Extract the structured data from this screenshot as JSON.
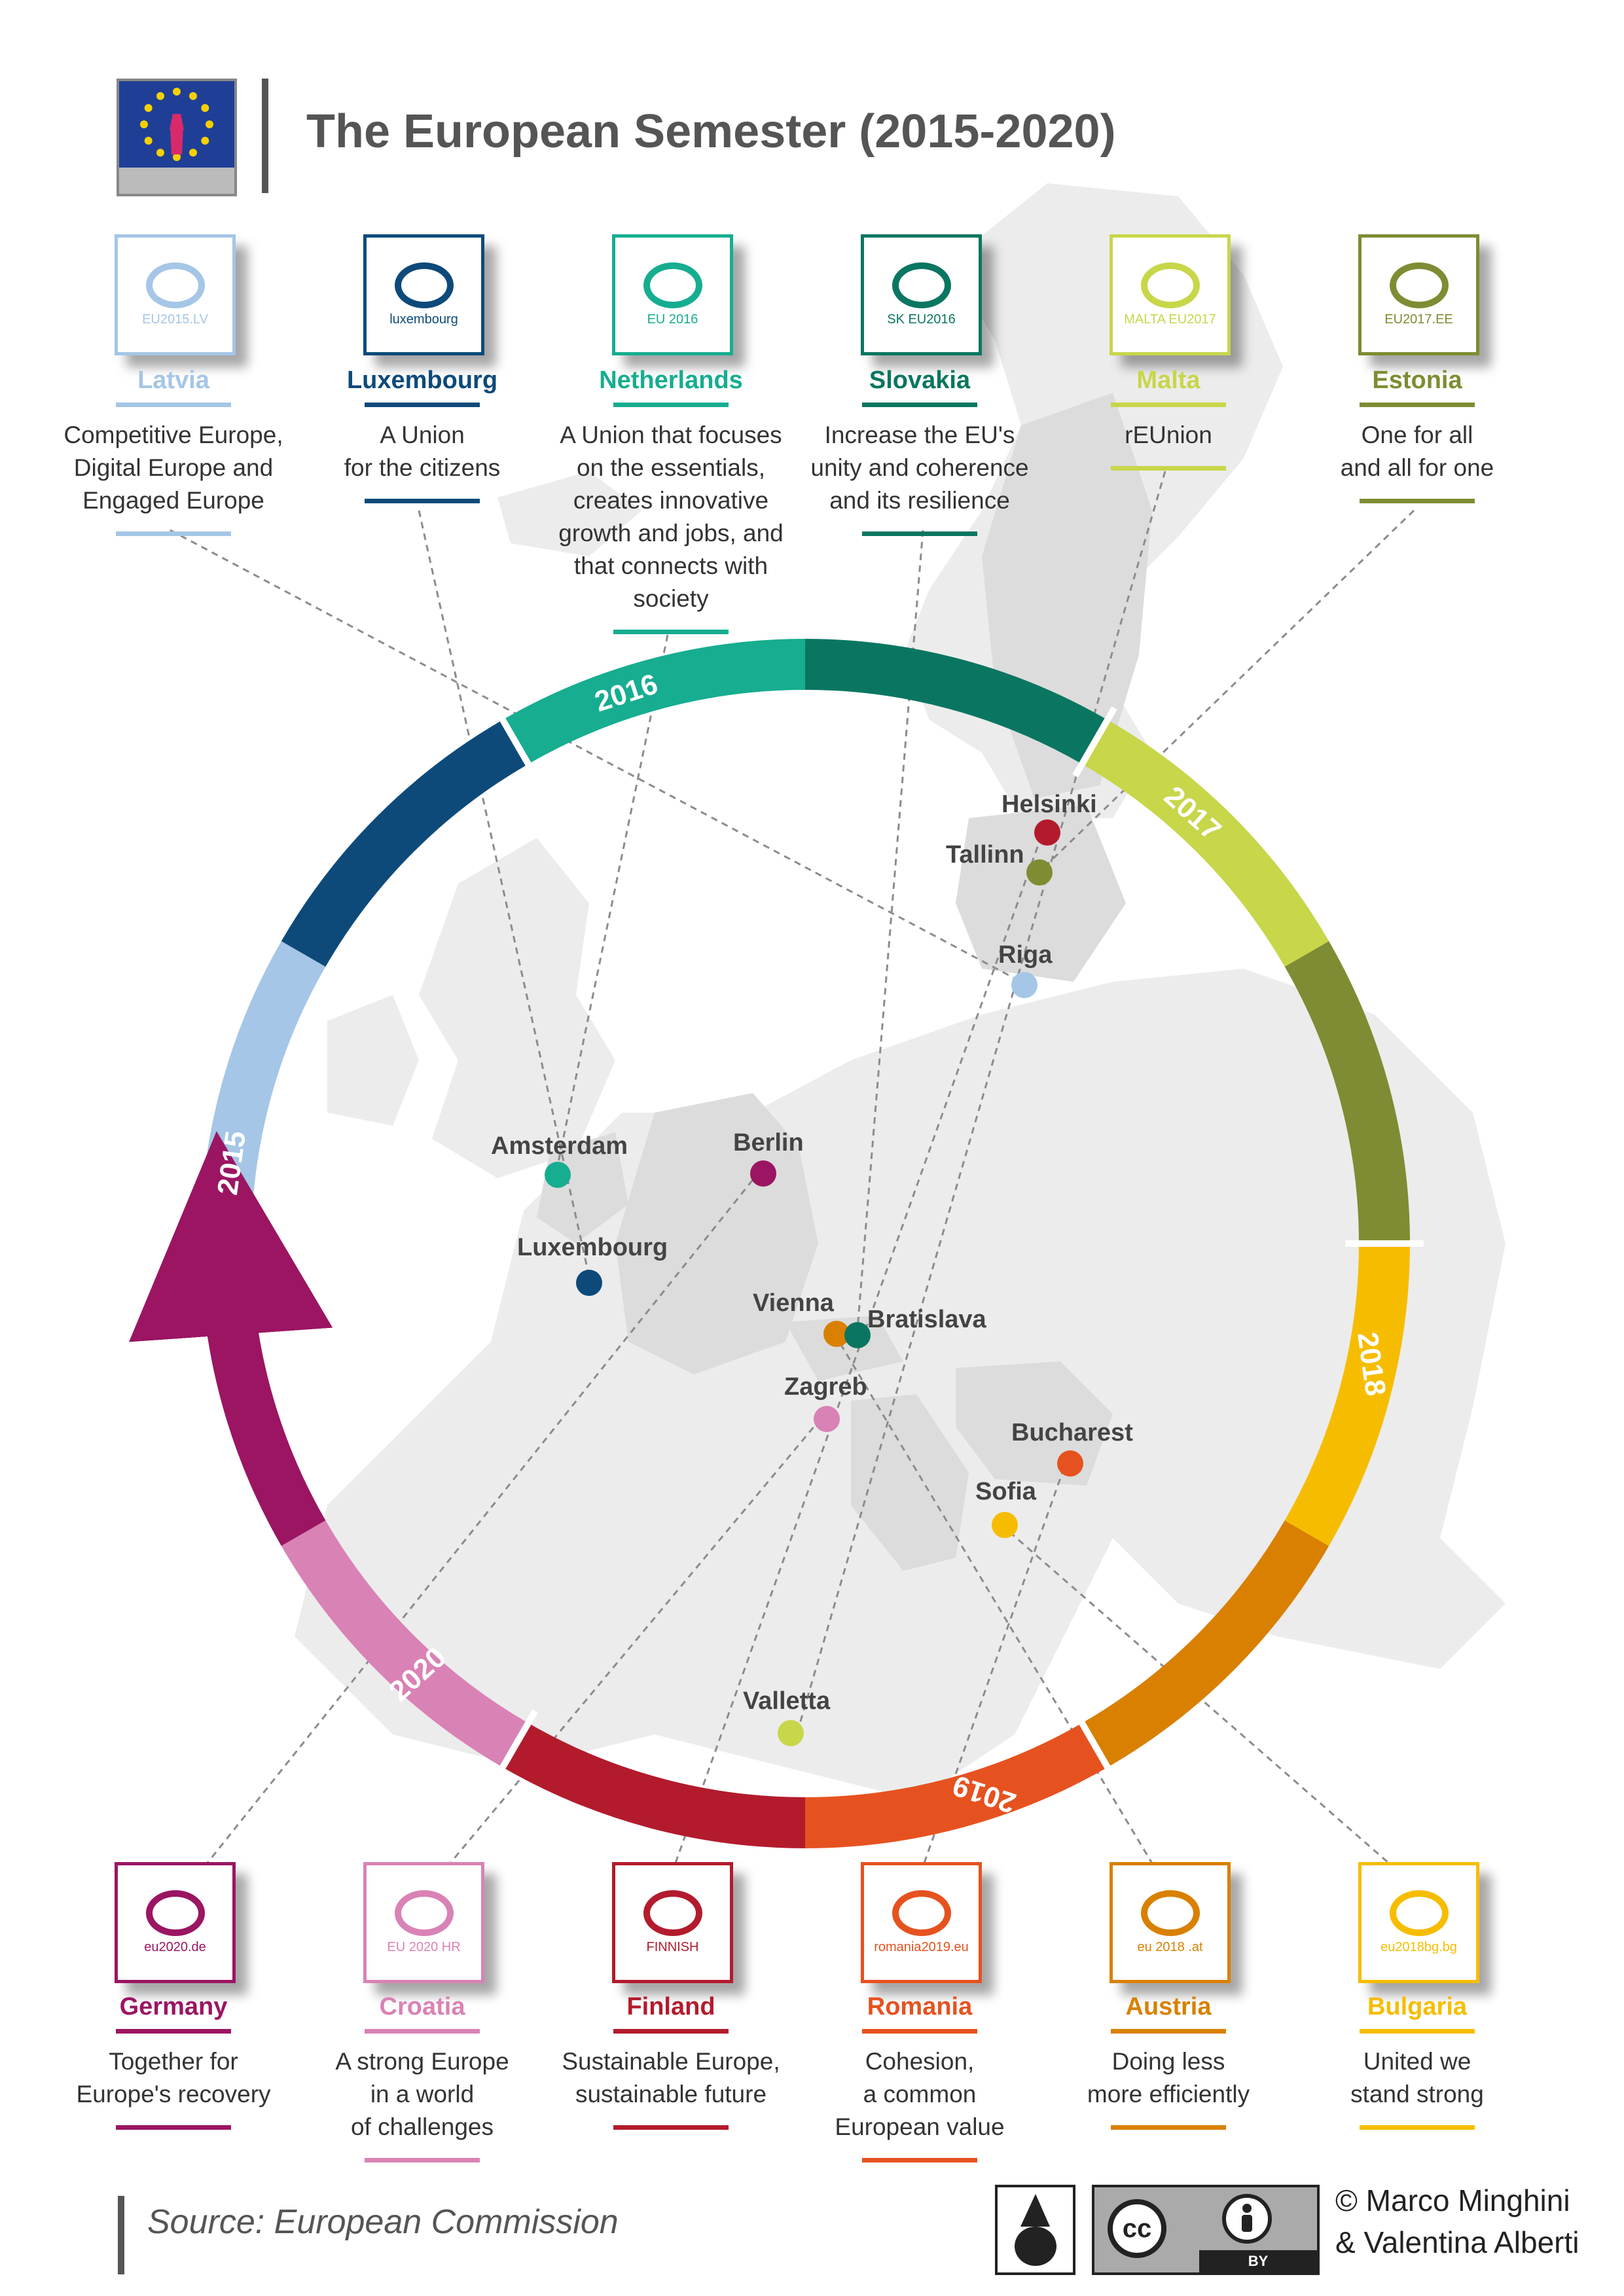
{
  "title": "The European Semester (2015-2020)",
  "source": "Source: European Commission",
  "credit": {
    "line1": "© Marco Minghini",
    "line2": "& Valentina Alberti"
  },
  "cc_badge": {
    "cc": "cc",
    "by": "BY"
  },
  "year_labels": [
    "2015",
    "2016",
    "2017",
    "2018",
    "2019",
    "2020"
  ],
  "top_presidencies": [
    {
      "country": "Latvia",
      "motto": [
        "Competitive Europe,",
        "Digital Europe and",
        "Engaged Europe"
      ],
      "logo_text": "EU2015.LV",
      "color": "#a5c6e6"
    },
    {
      "country": "Luxembourg",
      "motto": [
        "A Union",
        "for the citizens"
      ],
      "logo_text": "luxembourg",
      "color": "#0d4a7a"
    },
    {
      "country": "Netherlands",
      "motto": [
        "A Union that focuses",
        "on the essentials,",
        "creates innovative",
        "growth and jobs, and",
        "that connects with",
        "society"
      ],
      "logo_text": "EU 2016",
      "color": "#16ad90"
    },
    {
      "country": "Slovakia",
      "motto": [
        "Increase the EU's",
        "unity and coherence",
        "and its resilience"
      ],
      "logo_text": "SK EU2016",
      "color": "#0a7661"
    },
    {
      "country": "Malta",
      "motto": [
        "rEUnion"
      ],
      "logo_text": "MALTA EU2017",
      "color": "#c8d64a"
    },
    {
      "country": "Estonia",
      "motto": [
        "One for all",
        "and all for one"
      ],
      "logo_text": "EU2017.EE",
      "color": "#7f8c33"
    }
  ],
  "bottom_presidencies": [
    {
      "country": "Germany",
      "motto": [
        "Together for",
        "Europe's recovery"
      ],
      "logo_text": "eu2020.de",
      "color": "#9b1562"
    },
    {
      "country": "Croatia",
      "motto": [
        "A strong Europe",
        "in a world",
        "of challenges"
      ],
      "logo_text": "EU 2020 HR",
      "color": "#d982b5"
    },
    {
      "country": "Finland",
      "motto": [
        "Sustainable Europe,",
        "sustainable future"
      ],
      "logo_text": "FINNISH",
      "color": "#b31b2d"
    },
    {
      "country": "Romania",
      "motto": [
        "Cohesion,",
        "a common",
        "European value"
      ],
      "logo_text": "romania2019.eu",
      "color": "#e6521f"
    },
    {
      "country": "Austria",
      "motto": [
        "Doing less",
        "more efficiently"
      ],
      "logo_text": "eu 2018 .at",
      "color": "#d98000"
    },
    {
      "country": "Bulgaria",
      "motto": [
        "United we",
        "stand strong"
      ],
      "logo_text": "eu2018bg.bg",
      "color": "#f6bd00"
    }
  ],
  "cities": [
    {
      "name": "Helsinki",
      "color": "#b31b2d"
    },
    {
      "name": "Tallinn",
      "color": "#7f8c33"
    },
    {
      "name": "Riga",
      "color": "#a5c6e6"
    },
    {
      "name": "Amsterdam",
      "color": "#16ad90"
    },
    {
      "name": "Berlin",
      "color": "#9b1562"
    },
    {
      "name": "Luxembourg",
      "color": "#0d4a7a"
    },
    {
      "name": "Vienna",
      "color": "#d98000"
    },
    {
      "name": "Bratislava",
      "color": "#0a7661"
    },
    {
      "name": "Zagreb",
      "color": "#d982b5"
    },
    {
      "name": "Bucharest",
      "color": "#e6521f"
    },
    {
      "name": "Sofia",
      "color": "#f6bd00"
    },
    {
      "name": "Valletta",
      "color": "#c8d64a"
    }
  ]
}
